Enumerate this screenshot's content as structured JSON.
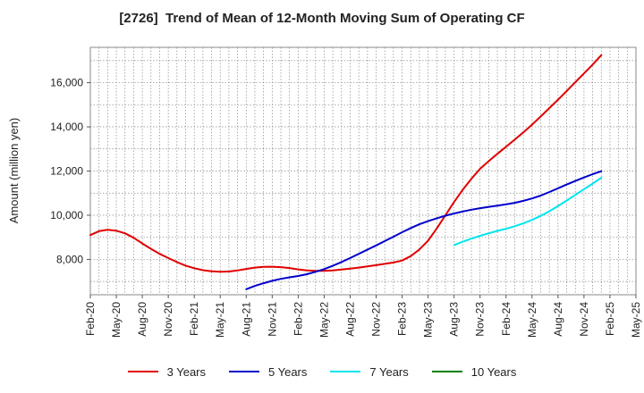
{
  "chart_data": {
    "type": "line",
    "title": "[2726]  Trend of Mean of 12-Month Moving Sum of Operating CF",
    "xlabel": "",
    "ylabel": "Amount (million yen)",
    "ylim": [
      6400,
      17600
    ],
    "yticks": [
      8000,
      10000,
      12000,
      14000,
      16000
    ],
    "ytick_labels": [
      "8,000",
      "10,000",
      "12,000",
      "14,000",
      "16,000"
    ],
    "xlim": [
      "Feb-20",
      "May-25"
    ],
    "xtick_labels": [
      "Feb-20",
      "May-20",
      "Aug-20",
      "Nov-20",
      "Feb-21",
      "May-21",
      "Aug-21",
      "Nov-21",
      "Feb-22",
      "May-22",
      "Aug-22",
      "Nov-22",
      "Feb-23",
      "May-23",
      "Aug-23",
      "Nov-23",
      "Feb-24",
      "May-24",
      "Aug-24",
      "Nov-24",
      "Feb-25",
      "May-25"
    ],
    "grid": true,
    "legend_position": "bottom",
    "series": [
      {
        "name": "3 Years",
        "color": "#e00000",
        "x": [
          0,
          1,
          2,
          3,
          4,
          5,
          6,
          7,
          8,
          9,
          10,
          11,
          12,
          13,
          14,
          15,
          16,
          17,
          18,
          19,
          20,
          21,
          22,
          23,
          24,
          25,
          26,
          27,
          28,
          29,
          30,
          31,
          32,
          33,
          34,
          35,
          36,
          37,
          38,
          39,
          40,
          41,
          42,
          43,
          44,
          45,
          46,
          47,
          48,
          49,
          50,
          51,
          52,
          53,
          54,
          55,
          56,
          57,
          58,
          59,
          60
        ],
        "values": [
          9100,
          9280,
          9340,
          9300,
          9180,
          8980,
          8720,
          8480,
          8250,
          8060,
          7880,
          7720,
          7600,
          7510,
          7460,
          7440,
          7450,
          7500,
          7570,
          7630,
          7660,
          7670,
          7650,
          7610,
          7550,
          7500,
          7480,
          7480,
          7500,
          7540,
          7580,
          7630,
          7680,
          7740,
          7800,
          7860,
          7950,
          8150,
          8450,
          8850,
          9400,
          10000,
          10600,
          11150,
          11650,
          12100,
          12450,
          12780,
          13100,
          13420,
          13750,
          14100,
          14470,
          14850,
          15230,
          15620,
          16020,
          16420,
          16820,
          17250,
          null
        ]
      },
      {
        "name": "5 Years",
        "color": "#0000cc",
        "x": [
          18,
          19,
          20,
          21,
          22,
          23,
          24,
          25,
          26,
          27,
          28,
          29,
          30,
          31,
          32,
          33,
          34,
          35,
          36,
          37,
          38,
          39,
          40,
          41,
          42,
          43,
          44,
          45,
          46,
          47,
          48,
          49,
          50,
          51,
          52,
          53,
          54,
          55,
          56,
          57,
          58,
          59
        ],
        "values": [
          6650,
          6800,
          6920,
          7030,
          7120,
          7190,
          7250,
          7330,
          7440,
          7560,
          7710,
          7880,
          8060,
          8250,
          8440,
          8630,
          8830,
          9030,
          9230,
          9420,
          9590,
          9730,
          9860,
          9980,
          10080,
          10170,
          10250,
          10320,
          10380,
          10430,
          10490,
          10560,
          10650,
          10760,
          10890,
          11050,
          11220,
          11390,
          11550,
          11710,
          11860,
          11990
        ]
      },
      {
        "name": "7 Years",
        "color": "#00e5ee",
        "x": [
          42,
          43,
          44,
          45,
          46,
          47,
          48,
          49,
          50,
          51,
          52,
          53,
          54,
          55,
          56,
          57,
          58,
          59
        ],
        "values": [
          8650,
          8800,
          8940,
          9070,
          9180,
          9290,
          9390,
          9500,
          9630,
          9790,
          9970,
          10180,
          10420,
          10660,
          10920,
          11180,
          11430,
          11700
        ]
      },
      {
        "name": "10 Years",
        "color": "#008000",
        "x": [],
        "values": []
      }
    ]
  }
}
